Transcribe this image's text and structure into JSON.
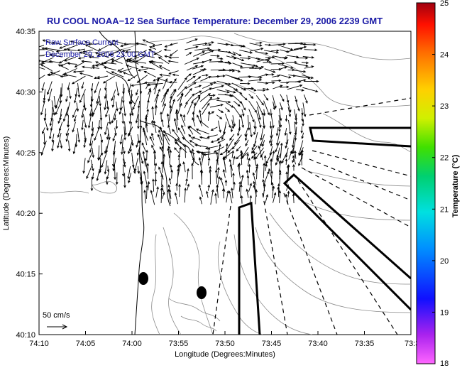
{
  "title": "RU COOL  NOAA−12  Sea Surface Temperature:  December 29, 2006 2239 GMT",
  "legend": {
    "line1": "Raw Surface Current",
    "line2": "December 29, 2006 23:00 GMT"
  },
  "axes": {
    "xlabel": "Longitude (Degrees:Minutes)",
    "ylabel": "Latitude (Degrees:Minutes)",
    "xticks": [
      "74:10",
      "74:05",
      "74:00",
      "73:55",
      "73:50",
      "73:45",
      "73:40",
      "73:35",
      "73:3"
    ],
    "yticks": [
      "40:35",
      "40:30",
      "40:25",
      "40:20",
      "40:15",
      "40:10"
    ]
  },
  "colorbar": {
    "title": "Temperature (°C)",
    "ticks": [
      "25",
      "24",
      "23",
      "22",
      "21",
      "20",
      "19",
      "18"
    ]
  },
  "scale": {
    "label": "50 cm/s"
  },
  "colors": {
    "title": "#1a1aa6",
    "coast": "#000000",
    "bathymetry": "#8a8a8a",
    "arrows": "#000000"
  }
}
